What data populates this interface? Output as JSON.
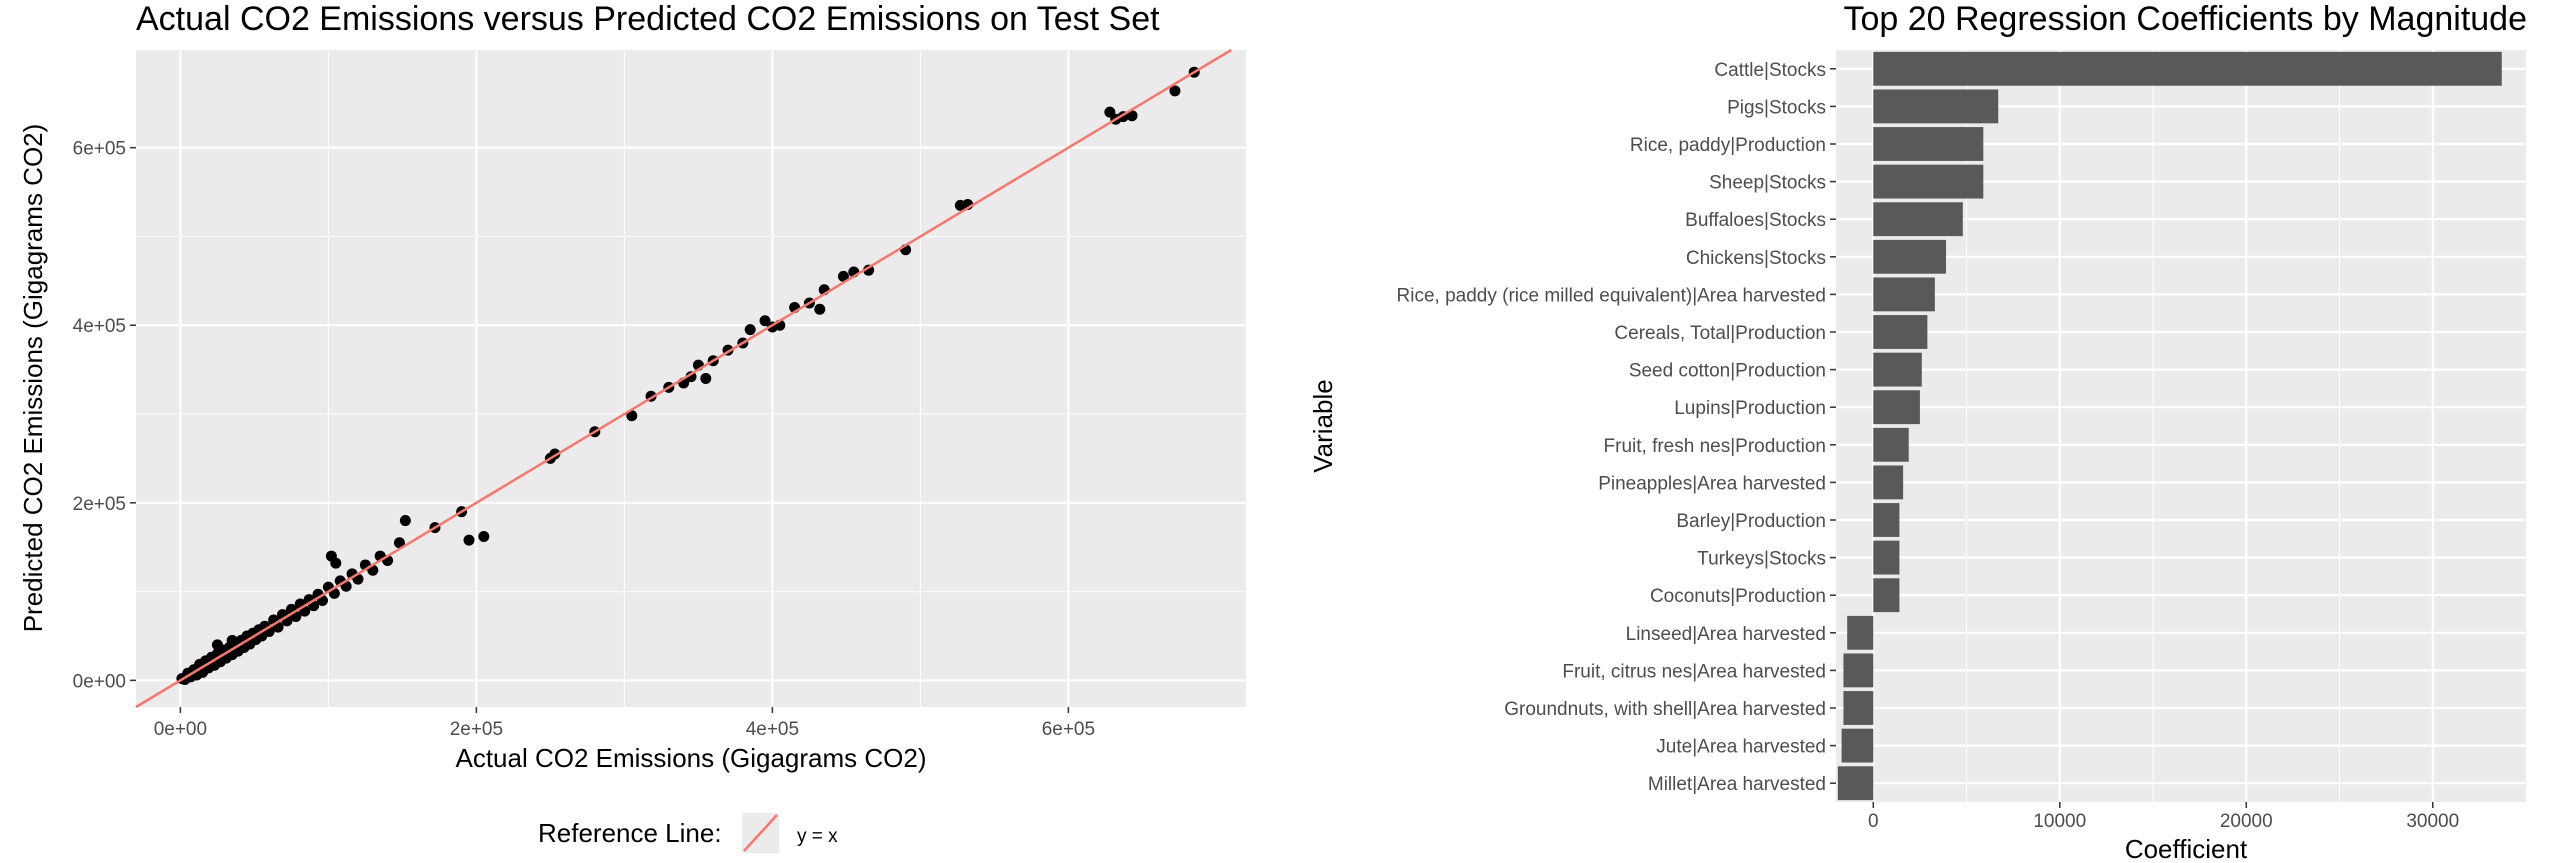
{
  "chart_data": [
    {
      "type": "scatter",
      "title": "Actual CO2 Emissions versus Predicted CO2 Emissions on Test Set",
      "xlabel": "Actual CO2 Emissions (Gigagrams CO2)",
      "ylabel": "Predicted CO2 Emissions (Gigagrams CO2)",
      "xlim": [
        -30000,
        720000
      ],
      "ylim": [
        -30000,
        710000
      ],
      "x_ticks": [
        {
          "value": 0,
          "label": "0e+00"
        },
        {
          "value": 200000,
          "label": "2e+05"
        },
        {
          "value": 400000,
          "label": "4e+05"
        },
        {
          "value": 600000,
          "label": "6e+05"
        }
      ],
      "y_ticks": [
        {
          "value": 0,
          "label": "0e+00"
        },
        {
          "value": 200000,
          "label": "2e+05"
        },
        {
          "value": 400000,
          "label": "4e+05"
        },
        {
          "value": 600000,
          "label": "6e+05"
        }
      ],
      "grid": true,
      "legend": {
        "title": "Reference Line:",
        "entries": [
          {
            "label": "y = x",
            "color": "#F8766D"
          }
        ],
        "placement": "bottom"
      },
      "reference_line": {
        "slope": 1,
        "intercept": 0,
        "color": "#F8766D"
      },
      "point_color": "#000000",
      "points": [
        [
          1000,
          2000
        ],
        [
          3000,
          1000
        ],
        [
          5000,
          8000
        ],
        [
          7000,
          4000
        ],
        [
          9000,
          12000
        ],
        [
          11000,
          6000
        ],
        [
          13000,
          18000
        ],
        [
          15000,
          9000
        ],
        [
          17000,
          22000
        ],
        [
          19000,
          14000
        ],
        [
          21000,
          26000
        ],
        [
          23000,
          17000
        ],
        [
          25000,
          30000
        ],
        [
          27000,
          21000
        ],
        [
          29000,
          34000
        ],
        [
          31000,
          25000
        ],
        [
          33000,
          37000
        ],
        [
          35000,
          29000
        ],
        [
          37000,
          42000
        ],
        [
          39000,
          33000
        ],
        [
          41000,
          45000
        ],
        [
          43000,
          37000
        ],
        [
          45000,
          50000
        ],
        [
          47000,
          41000
        ],
        [
          49000,
          53000
        ],
        [
          51000,
          46000
        ],
        [
          53000,
          57000
        ],
        [
          55000,
          50000
        ],
        [
          57000,
          61000
        ],
        [
          60000,
          55000
        ],
        [
          63000,
          68000
        ],
        [
          66000,
          60000
        ],
        [
          69000,
          74000
        ],
        [
          72000,
          67000
        ],
        [
          75000,
          80000
        ],
        [
          78000,
          72000
        ],
        [
          81000,
          86000
        ],
        [
          84000,
          78000
        ],
        [
          87000,
          91000
        ],
        [
          90000,
          84000
        ],
        [
          93000,
          97000
        ],
        [
          96000,
          90000
        ],
        [
          100000,
          105000
        ],
        [
          104000,
          98000
        ],
        [
          108000,
          112000
        ],
        [
          112000,
          106000
        ],
        [
          116000,
          120000
        ],
        [
          120000,
          114000
        ],
        [
          125000,
          130000
        ],
        [
          130000,
          124000
        ],
        [
          135000,
          140000
        ],
        [
          140000,
          135000
        ],
        [
          25000,
          40000
        ],
        [
          35000,
          45000
        ],
        [
          102000,
          140000
        ],
        [
          105000,
          132000
        ],
        [
          148000,
          155000
        ],
        [
          152000,
          180000
        ],
        [
          172000,
          172000
        ],
        [
          190000,
          190000
        ],
        [
          195000,
          158000
        ],
        [
          205000,
          162000
        ],
        [
          250000,
          250000
        ],
        [
          253000,
          255000
        ],
        [
          280000,
          280000
        ],
        [
          305000,
          298000
        ],
        [
          318000,
          320000
        ],
        [
          330000,
          330000
        ],
        [
          340000,
          335000
        ],
        [
          345000,
          342000
        ],
        [
          350000,
          355000
        ],
        [
          355000,
          340000
        ],
        [
          360000,
          360000
        ],
        [
          370000,
          372000
        ],
        [
          380000,
          380000
        ],
        [
          385000,
          395000
        ],
        [
          395000,
          405000
        ],
        [
          400000,
          398000
        ],
        [
          405000,
          400000
        ],
        [
          415000,
          420000
        ],
        [
          425000,
          425000
        ],
        [
          432000,
          418000
        ],
        [
          435000,
          440000
        ],
        [
          448000,
          455000
        ],
        [
          455000,
          460000
        ],
        [
          465000,
          462000
        ],
        [
          490000,
          485000
        ],
        [
          527000,
          535000
        ],
        [
          532000,
          536000
        ],
        [
          628000,
          640000
        ],
        [
          632000,
          632000
        ],
        [
          637000,
          635000
        ],
        [
          643000,
          636000
        ],
        [
          672000,
          664000
        ],
        [
          685000,
          685000
        ]
      ]
    },
    {
      "type": "bar",
      "orientation": "horizontal",
      "title": "Top 20 Regression Coefficients by Magnitude",
      "xlabel": "Coefficient",
      "ylabel": "Variable",
      "xlim": [
        -2000,
        35000
      ],
      "x_ticks": [
        {
          "value": 0,
          "label": "0"
        },
        {
          "value": 10000,
          "label": "10000"
        },
        {
          "value": 20000,
          "label": "20000"
        },
        {
          "value": 30000,
          "label": "30000"
        }
      ],
      "grid": true,
      "bar_color": "#595959",
      "categories": [
        "Cattle|Stocks",
        "Pigs|Stocks",
        "Rice, paddy|Production",
        "Sheep|Stocks",
        "Buffaloes|Stocks",
        "Chickens|Stocks",
        "Rice, paddy (rice milled equivalent)|Area harvested",
        "Cereals, Total|Production",
        "Seed cotton|Production",
        "Lupins|Production",
        "Fruit, fresh nes|Production",
        "Pineapples|Area harvested",
        "Barley|Production",
        "Turkeys|Stocks",
        "Coconuts|Production",
        "Linseed|Area harvested",
        "Fruit, citrus nes|Area harvested",
        "Groundnuts, with shell|Area harvested",
        "Jute|Area harvested",
        "Millet|Area harvested"
      ],
      "values": [
        33700,
        6700,
        5900,
        5900,
        4800,
        3900,
        3300,
        2900,
        2600,
        2500,
        1900,
        1600,
        1400,
        1400,
        1400,
        -1400,
        -1600,
        -1600,
        -1700,
        -1900
      ]
    }
  ]
}
